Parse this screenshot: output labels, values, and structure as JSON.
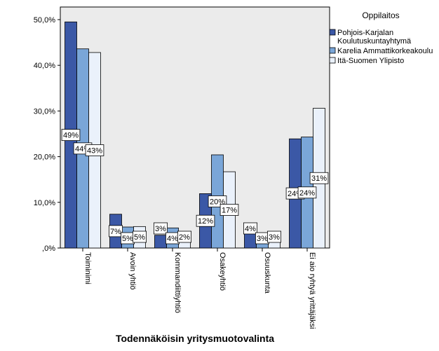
{
  "chart_data": {
    "type": "bar",
    "title": "",
    "xlabel": "Todennäköisin yritysmuotovalinta",
    "ylabel": "",
    "ylim": [
      0,
      50
    ],
    "yticks": [
      0,
      10,
      20,
      30,
      40,
      50
    ],
    "ytick_labels": [
      ",0%",
      "10,0%",
      "20,0%",
      "30,0%",
      "40,0%",
      "50,0%"
    ],
    "grid": false,
    "legend": {
      "title": "Oppilaitos",
      "position": "top-right"
    },
    "categories": [
      "Toiminimi",
      "Avoin yhtiö",
      "Kommandiittiyhtiö",
      "Osakeyhtiö",
      "Osuuskunta",
      "Ei aio ryhtyä yrittäjäksi"
    ],
    "series": [
      {
        "name": "Pohjois-Karjalan Koulutuskuntayhtymä",
        "color": "#3B58A6",
        "values": [
          49.5,
          7.4,
          2.8,
          11.9,
          3.8,
          23.9
        ],
        "labels": [
          "49%",
          "7%",
          "3%",
          "12%",
          "4%",
          "24%"
        ]
      },
      {
        "name": "Karelia Ammattikorkeakoulu",
        "color": "#7AA6D8",
        "values": [
          43.6,
          4.6,
          4.4,
          20.4,
          2.6,
          24.3
        ],
        "labels": [
          "44%",
          "5%",
          "4%",
          "20%",
          "3%",
          "24%"
        ]
      },
      {
        "name": "Itä-Suomen Ylipisto",
        "color": "#EAF1FB",
        "values": [
          42.8,
          4.7,
          1.9,
          16.7,
          2.8,
          30.6
        ],
        "labels": [
          "43%",
          "5%",
          "2%",
          "17%",
          "3%",
          "31%"
        ]
      }
    ]
  }
}
